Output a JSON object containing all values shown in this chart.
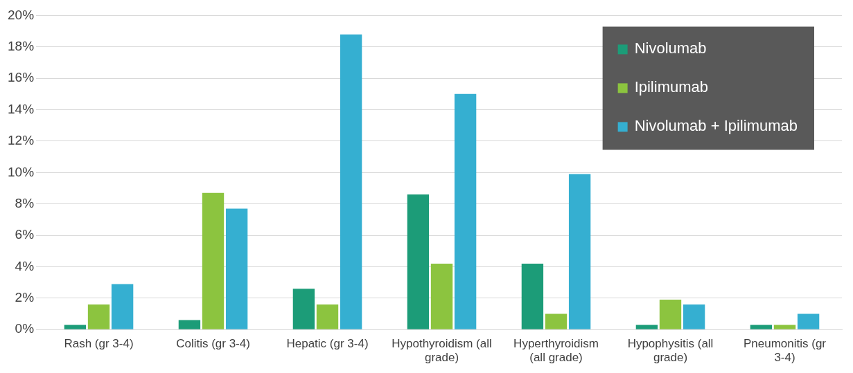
{
  "chart_data": {
    "type": "bar",
    "categories": [
      "Rash (gr 3-4)",
      "Colitis (gr 3-4)",
      "Hepatic (gr 3-4)",
      "Hypothyroidism (all grade)",
      "Hyperthyroidism (all grade)",
      "Hypophysitis (all grade)",
      "Pneumonitis (gr 3-4)"
    ],
    "series": [
      {
        "name": "Nivolumab",
        "color": "#1c9c78",
        "values": [
          0.3,
          0.6,
          2.6,
          8.6,
          4.2,
          0.3,
          0.3
        ]
      },
      {
        "name": "Ipilimumab",
        "color": "#8cc43f",
        "values": [
          1.6,
          8.7,
          1.6,
          4.2,
          1.0,
          1.9,
          0.3
        ]
      },
      {
        "name": "Nivolumab + Ipilimumab",
        "color": "#35afd1",
        "values": [
          2.9,
          7.7,
          18.8,
          15.0,
          9.9,
          1.6,
          1.0
        ]
      }
    ],
    "ylim": [
      0,
      20
    ],
    "yticks": [
      {
        "value": 0,
        "label": "0%"
      },
      {
        "value": 2,
        "label": "2%"
      },
      {
        "value": 4,
        "label": "4%"
      },
      {
        "value": 6,
        "label": "6%"
      },
      {
        "value": 8,
        "label": "8%"
      },
      {
        "value": 10,
        "label": "10%"
      },
      {
        "value": 12,
        "label": "12%"
      },
      {
        "value": 14,
        "label": "14%"
      },
      {
        "value": 16,
        "label": "16%"
      },
      {
        "value": 18,
        "label": "18%"
      },
      {
        "value": 20,
        "label": "20%"
      }
    ],
    "grid": "y",
    "legend": "top right"
  }
}
